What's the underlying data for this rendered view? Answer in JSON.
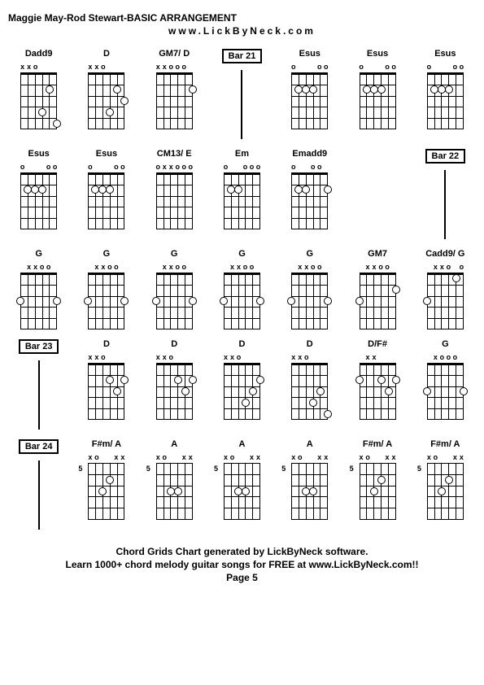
{
  "title": "Maggie May-Rod Stewart-BASIC ARRANGEMENT",
  "subtitle": "www.LickByNeck.com",
  "footer": {
    "line1": "Chord Grids Chart generated by LickByNeck software.",
    "line2": "Learn 1000+ chord melody guitar songs for FREE at www.LickByNeck.com!!",
    "line3": "Page 5"
  },
  "num_frets": 5,
  "num_strings": 6,
  "chords": [
    {
      "name": "Dadd9",
      "mutes": [
        "x",
        "x",
        "o",
        "",
        "",
        ""
      ],
      "dots": [
        {
          "s": 3,
          "f": 4
        },
        {
          "s": 4,
          "f": 2
        },
        {
          "s": 5,
          "f": 5
        }
      ]
    },
    {
      "name": "D",
      "mutes": [
        "x",
        "x",
        "o",
        "",
        "",
        ""
      ],
      "dots": [
        {
          "s": 3,
          "f": 4
        },
        {
          "s": 4,
          "f": 2
        },
        {
          "s": 5,
          "f": 3
        }
      ]
    },
    {
      "name": "GM7/ D",
      "mutes": [
        "x",
        "x",
        "o",
        "o",
        "o",
        ""
      ],
      "dots": [
        {
          "s": 5,
          "f": 2
        }
      ]
    },
    {
      "type": "bar",
      "label": "Bar 21"
    },
    {
      "name": "Esus",
      "mutes": [
        "o",
        "",
        "",
        "",
        "o",
        "o"
      ],
      "dots": [
        {
          "s": 1,
          "f": 2
        },
        {
          "s": 2,
          "f": 2
        },
        {
          "s": 3,
          "f": 2
        }
      ]
    },
    {
      "name": "Esus",
      "mutes": [
        "o",
        "",
        "",
        "",
        "o",
        "o"
      ],
      "dots": [
        {
          "s": 1,
          "f": 2
        },
        {
          "s": 2,
          "f": 2
        },
        {
          "s": 3,
          "f": 2
        }
      ]
    },
    {
      "name": "Esus",
      "mutes": [
        "o",
        "",
        "",
        "",
        "o",
        "o"
      ],
      "dots": [
        {
          "s": 1,
          "f": 2
        },
        {
          "s": 2,
          "f": 2
        },
        {
          "s": 3,
          "f": 2
        }
      ]
    },
    {
      "name": "Esus",
      "mutes": [
        "o",
        "",
        "",
        "",
        "o",
        "o"
      ],
      "dots": [
        {
          "s": 1,
          "f": 2
        },
        {
          "s": 2,
          "f": 2
        },
        {
          "s": 3,
          "f": 2
        }
      ]
    },
    {
      "name": "Esus",
      "mutes": [
        "o",
        "",
        "",
        "",
        "o",
        "o"
      ],
      "dots": [
        {
          "s": 1,
          "f": 2
        },
        {
          "s": 2,
          "f": 2
        },
        {
          "s": 3,
          "f": 2
        }
      ]
    },
    {
      "name": "CM13/ E",
      "mutes": [
        "o",
        "x",
        "x",
        "o",
        "o",
        "o"
      ],
      "dots": []
    },
    {
      "name": "Em",
      "mutes": [
        "o",
        "",
        "",
        "o",
        "o",
        "o"
      ],
      "dots": [
        {
          "s": 1,
          "f": 2
        },
        {
          "s": 2,
          "f": 2
        }
      ]
    },
    {
      "name": "Emadd9",
      "mutes": [
        "o",
        "",
        "",
        "o",
        "o",
        ""
      ],
      "dots": [
        {
          "s": 1,
          "f": 2
        },
        {
          "s": 2,
          "f": 2
        },
        {
          "s": 5,
          "f": 2
        }
      ]
    },
    {
      "type": "empty"
    },
    {
      "type": "bar",
      "label": "Bar 22"
    },
    {
      "name": "G",
      "mutes": [
        "",
        "x",
        "x",
        "o",
        "o",
        ""
      ],
      "dots": [
        {
          "s": 0,
          "f": 3
        },
        {
          "s": 5,
          "f": 3
        }
      ]
    },
    {
      "name": "G",
      "mutes": [
        "",
        "x",
        "x",
        "o",
        "o",
        ""
      ],
      "dots": [
        {
          "s": 0,
          "f": 3
        },
        {
          "s": 5,
          "f": 3
        }
      ]
    },
    {
      "name": "G",
      "mutes": [
        "",
        "x",
        "x",
        "o",
        "o",
        ""
      ],
      "dots": [
        {
          "s": 0,
          "f": 3
        },
        {
          "s": 5,
          "f": 3
        }
      ]
    },
    {
      "name": "G",
      "mutes": [
        "",
        "x",
        "x",
        "o",
        "o",
        ""
      ],
      "dots": [
        {
          "s": 0,
          "f": 3
        },
        {
          "s": 5,
          "f": 3
        }
      ]
    },
    {
      "name": "G",
      "mutes": [
        "",
        "x",
        "x",
        "o",
        "o",
        ""
      ],
      "dots": [
        {
          "s": 0,
          "f": 3
        },
        {
          "s": 5,
          "f": 3
        }
      ]
    },
    {
      "name": "GM7",
      "mutes": [
        "",
        "x",
        "x",
        "o",
        "o",
        ""
      ],
      "dots": [
        {
          "s": 0,
          "f": 3
        },
        {
          "s": 5,
          "f": 2
        }
      ]
    },
    {
      "name": "Cadd9/ G",
      "mutes": [
        "",
        "x",
        "x",
        "o",
        "",
        "o"
      ],
      "dots": [
        {
          "s": 0,
          "f": 3
        },
        {
          "s": 4,
          "f": 1
        }
      ]
    },
    {
      "type": "bar",
      "label": "Bar 23"
    },
    {
      "name": "D",
      "mutes": [
        "x",
        "x",
        "o",
        "",
        "",
        ""
      ],
      "dots": [
        {
          "s": 3,
          "f": 2
        },
        {
          "s": 4,
          "f": 3
        },
        {
          "s": 5,
          "f": 2
        }
      ]
    },
    {
      "name": "D",
      "mutes": [
        "x",
        "x",
        "o",
        "",
        "",
        ""
      ],
      "dots": [
        {
          "s": 3,
          "f": 2
        },
        {
          "s": 4,
          "f": 3
        },
        {
          "s": 5,
          "f": 2
        }
      ]
    },
    {
      "name": "D",
      "mutes": [
        "x",
        "x",
        "o",
        "",
        "",
        ""
      ],
      "dots": [
        {
          "s": 3,
          "f": 4
        },
        {
          "s": 4,
          "f": 3
        },
        {
          "s": 5,
          "f": 2
        }
      ]
    },
    {
      "name": "D",
      "mutes": [
        "x",
        "x",
        "o",
        "",
        "",
        ""
      ],
      "dots": [
        {
          "s": 3,
          "f": 4
        },
        {
          "s": 4,
          "f": 3
        },
        {
          "s": 5,
          "f": 5
        }
      ]
    },
    {
      "name": "D/F#",
      "mutes": [
        "",
        "x",
        "x",
        "",
        "",
        ""
      ],
      "dots": [
        {
          "s": 0,
          "f": 2
        },
        {
          "s": 3,
          "f": 2
        },
        {
          "s": 4,
          "f": 3
        },
        {
          "s": 5,
          "f": 2
        }
      ]
    },
    {
      "name": "G",
      "mutes": [
        "",
        "x",
        "o",
        "o",
        "o",
        ""
      ],
      "dots": [
        {
          "s": 0,
          "f": 3
        },
        {
          "s": 5,
          "f": 3
        }
      ]
    },
    {
      "type": "bar",
      "label": "Bar 24"
    },
    {
      "name": "F#m/ A",
      "mutes": [
        "x",
        "o",
        "",
        "",
        "x",
        "x"
      ],
      "fretLabel": "5",
      "dots": [
        {
          "s": 2,
          "f": 3
        },
        {
          "s": 3,
          "f": 2
        }
      ]
    },
    {
      "name": "A",
      "mutes": [
        "x",
        "o",
        "",
        "",
        "x",
        "x"
      ],
      "fretLabel": "5",
      "dots": [
        {
          "s": 2,
          "f": 3
        },
        {
          "s": 3,
          "f": 3
        }
      ]
    },
    {
      "name": "A",
      "mutes": [
        "x",
        "o",
        "",
        "",
        "x",
        "x"
      ],
      "fretLabel": "5",
      "dots": [
        {
          "s": 2,
          "f": 3
        },
        {
          "s": 3,
          "f": 3
        }
      ]
    },
    {
      "name": "A",
      "mutes": [
        "x",
        "o",
        "",
        "",
        "x",
        "x"
      ],
      "fretLabel": "5",
      "dots": [
        {
          "s": 2,
          "f": 3
        },
        {
          "s": 3,
          "f": 3
        }
      ]
    },
    {
      "name": "F#m/ A",
      "mutes": [
        "x",
        "o",
        "",
        "",
        "x",
        "x"
      ],
      "fretLabel": "5",
      "dots": [
        {
          "s": 2,
          "f": 3
        },
        {
          "s": 3,
          "f": 2
        }
      ]
    },
    {
      "name": "F#m/ A",
      "mutes": [
        "x",
        "o",
        "",
        "",
        "x",
        "x"
      ],
      "fretLabel": "5",
      "dots": [
        {
          "s": 2,
          "f": 3
        },
        {
          "s": 3,
          "f": 2
        }
      ]
    }
  ]
}
